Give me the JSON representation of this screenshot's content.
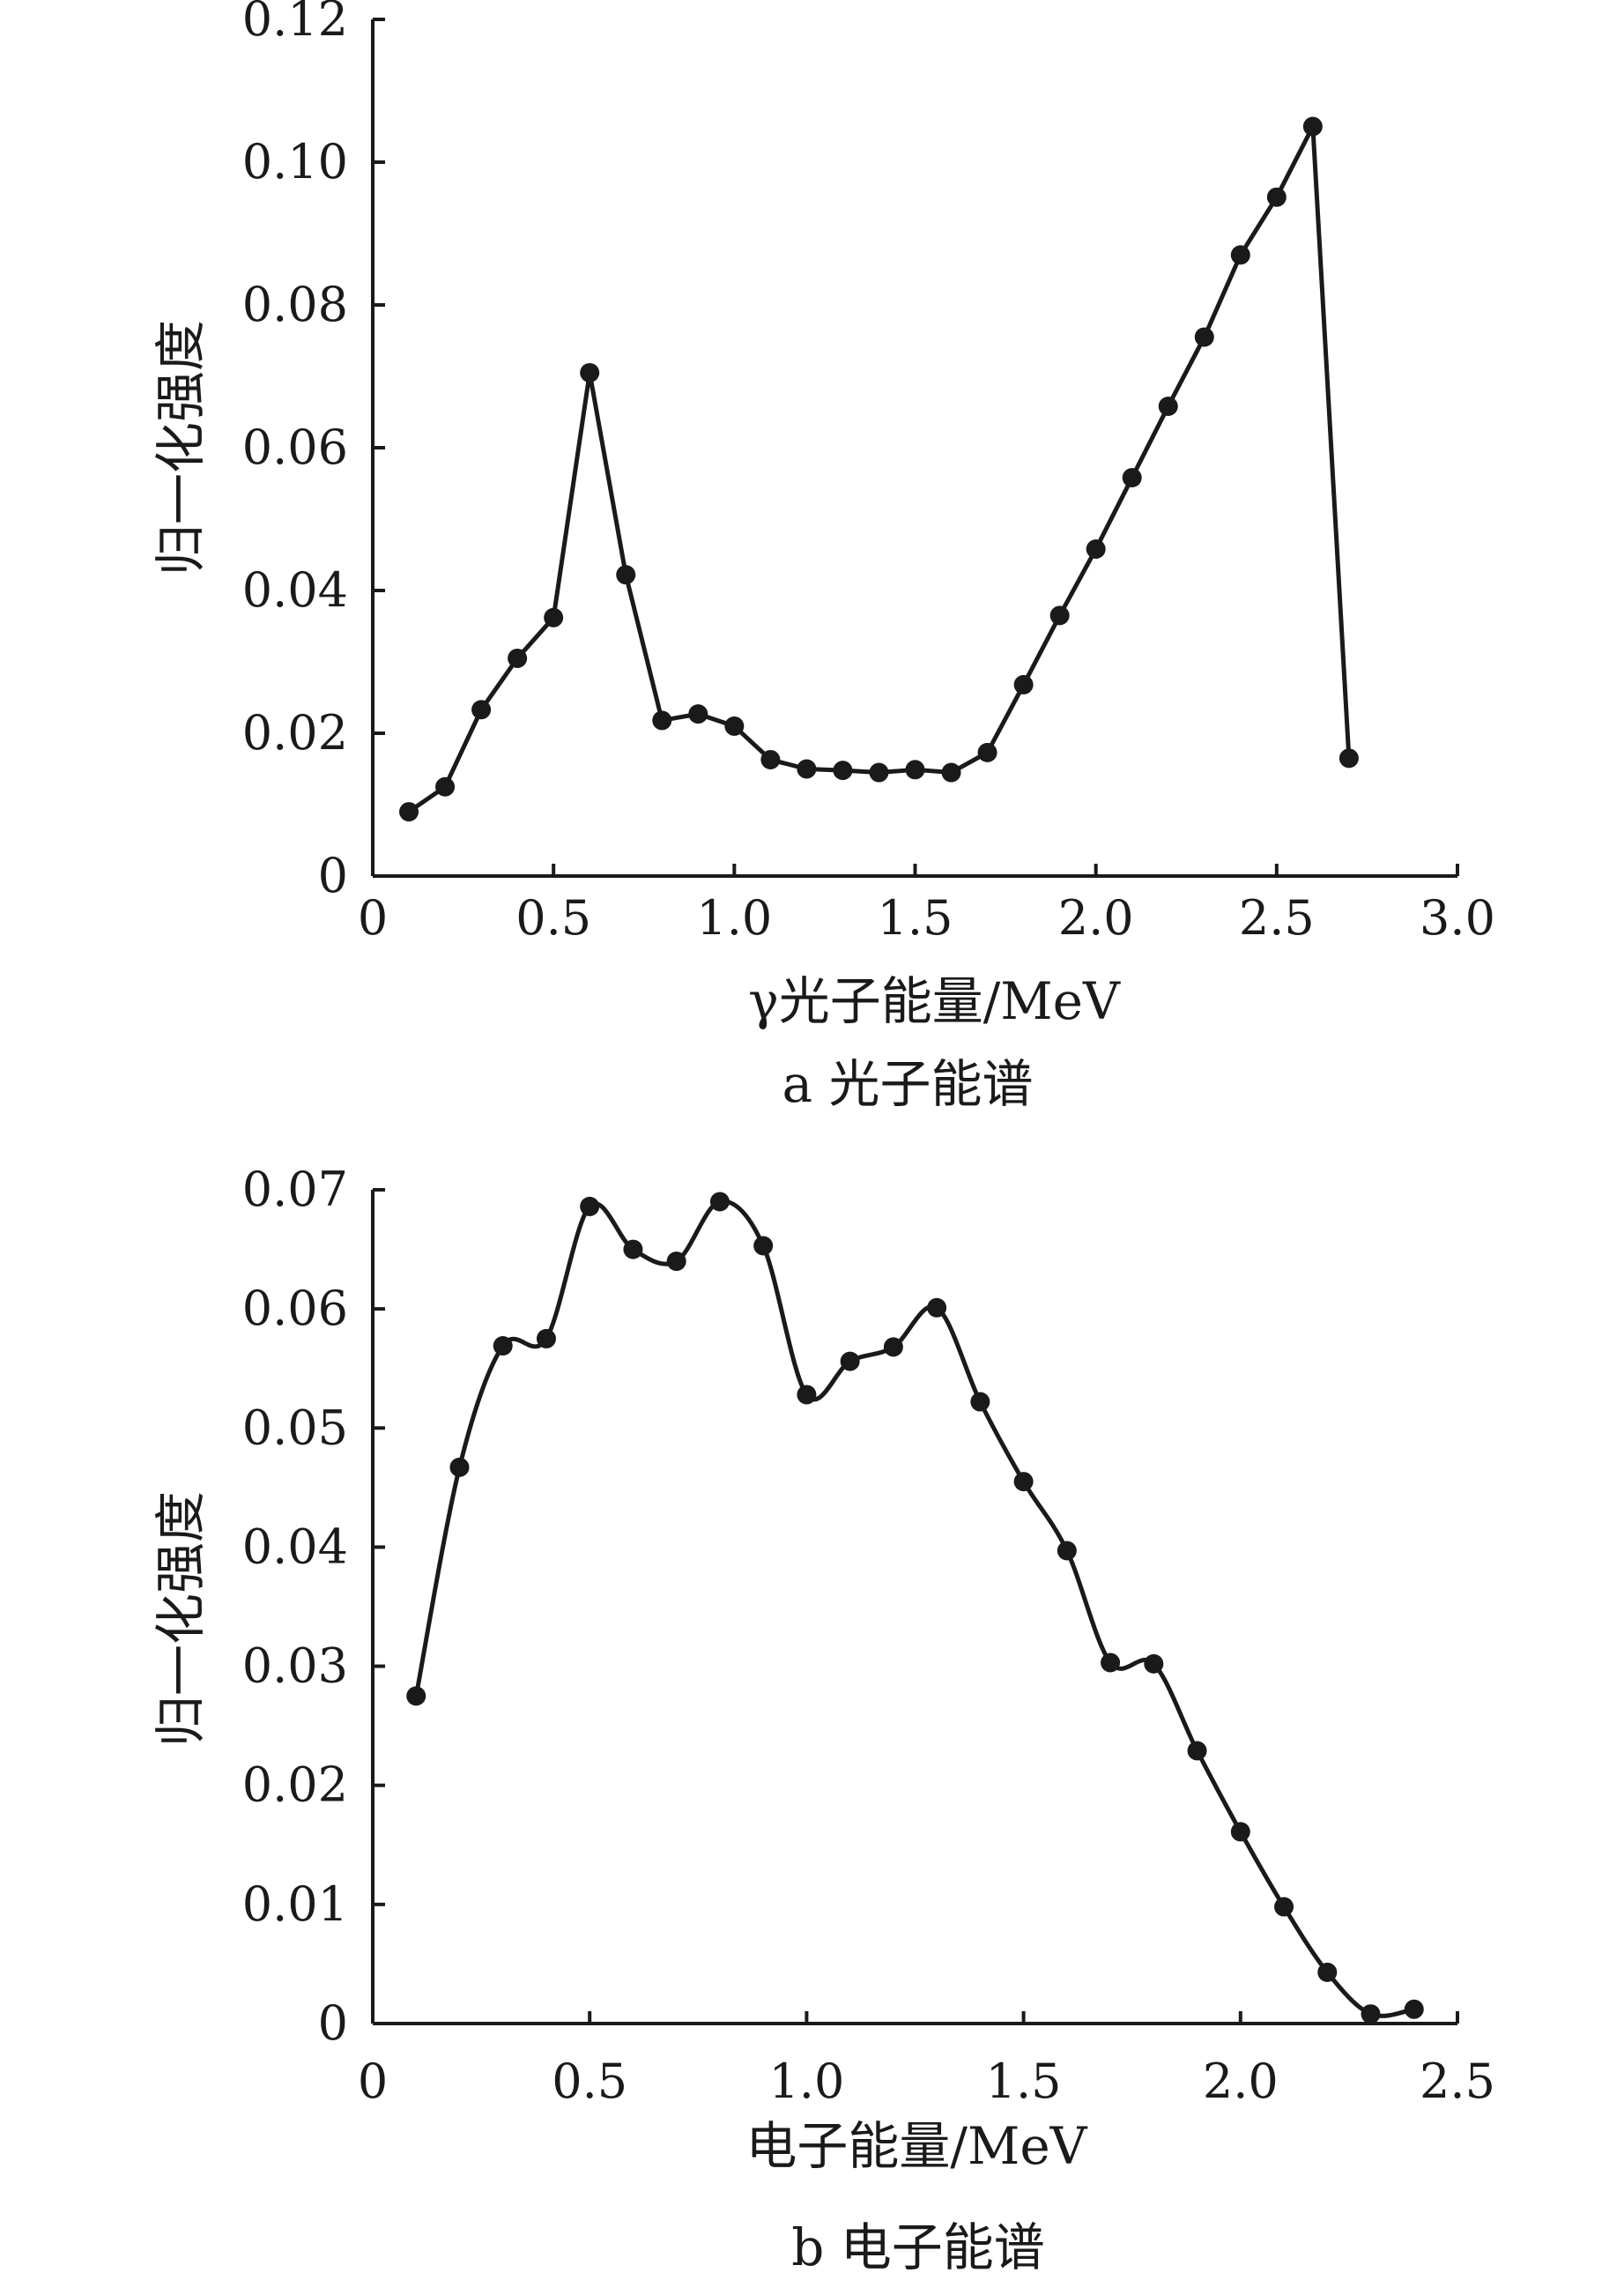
{
  "chart_data": [
    {
      "type": "line",
      "caption": "a  光子能谱",
      "xlabel": "γ光子能量/MeV",
      "ylabel": "归一化强度",
      "xlim": [
        0,
        3.0
      ],
      "ylim": [
        0,
        0.12
      ],
      "x_ticks": [
        "0",
        "0.5",
        "1.0",
        "1.5",
        "2.0",
        "2.5",
        "3.0"
      ],
      "y_ticks": [
        "0",
        "0.02",
        "0.04",
        "0.06",
        "0.08",
        "0.10",
        "0.12"
      ],
      "x_tick_values": [
        0,
        0.5,
        1.0,
        1.5,
        2.0,
        2.5,
        3.0
      ],
      "y_tick_values": [
        0,
        0.02,
        0.04,
        0.06,
        0.08,
        0.1,
        0.12
      ],
      "smooth": false,
      "markers": true,
      "line_color": "#1a1a1a",
      "series": [
        {
          "x": [
            0.1,
            0.2,
            0.3,
            0.4,
            0.5,
            0.6,
            0.7,
            0.8,
            0.9,
            1.0,
            1.1,
            1.2,
            1.3,
            1.4,
            1.5,
            1.6,
            1.7,
            1.8,
            1.9,
            2.0,
            2.1,
            2.2,
            2.3,
            2.4,
            2.5,
            2.6,
            2.7
          ],
          "values": [
            0.009,
            0.0125,
            0.0233,
            0.0305,
            0.0362,
            0.0705,
            0.0422,
            0.0218,
            0.0227,
            0.021,
            0.0163,
            0.015,
            0.0148,
            0.0145,
            0.0149,
            0.0145,
            0.0173,
            0.0268,
            0.0365,
            0.0458,
            0.0558,
            0.0658,
            0.0755,
            0.087,
            0.0951,
            0.105,
            0.0165
          ]
        }
      ]
    },
    {
      "type": "line",
      "caption": "b  电子能谱",
      "xlabel": "电子能量/MeV",
      "ylabel": "归一化强度",
      "xlim": [
        0,
        2.5
      ],
      "ylim": [
        0,
        0.07
      ],
      "x_ticks": [
        "0",
        "0.5",
        "1.0",
        "1.5",
        "2.0",
        "2.5"
      ],
      "y_ticks": [
        "0",
        "0.01",
        "0.02",
        "0.03",
        "0.04",
        "0.05",
        "0.06",
        "0.07"
      ],
      "x_tick_values": [
        0,
        0.5,
        1.0,
        1.5,
        2.0,
        2.5
      ],
      "y_tick_values": [
        0,
        0.01,
        0.02,
        0.03,
        0.04,
        0.05,
        0.06,
        0.07
      ],
      "smooth": true,
      "markers": true,
      "line_color": "#1a1a1a",
      "series": [
        {
          "x": [
            0.1,
            0.2,
            0.3,
            0.4,
            0.5,
            0.6,
            0.7,
            0.8,
            0.9,
            1.0,
            1.1,
            1.2,
            1.3,
            1.4,
            1.5,
            1.6,
            1.7,
            1.8,
            1.9,
            2.0,
            2.1,
            2.2,
            2.3,
            2.4
          ],
          "values": [
            0.0275,
            0.0467,
            0.0569,
            0.0575,
            0.0686,
            0.065,
            0.064,
            0.069,
            0.0653,
            0.0528,
            0.0556,
            0.0568,
            0.0601,
            0.0522,
            0.0455,
            0.0397,
            0.0303,
            0.0302,
            0.0229,
            0.0161,
            0.0098,
            0.0043,
            0.0008,
            0.0012
          ]
        }
      ]
    }
  ]
}
